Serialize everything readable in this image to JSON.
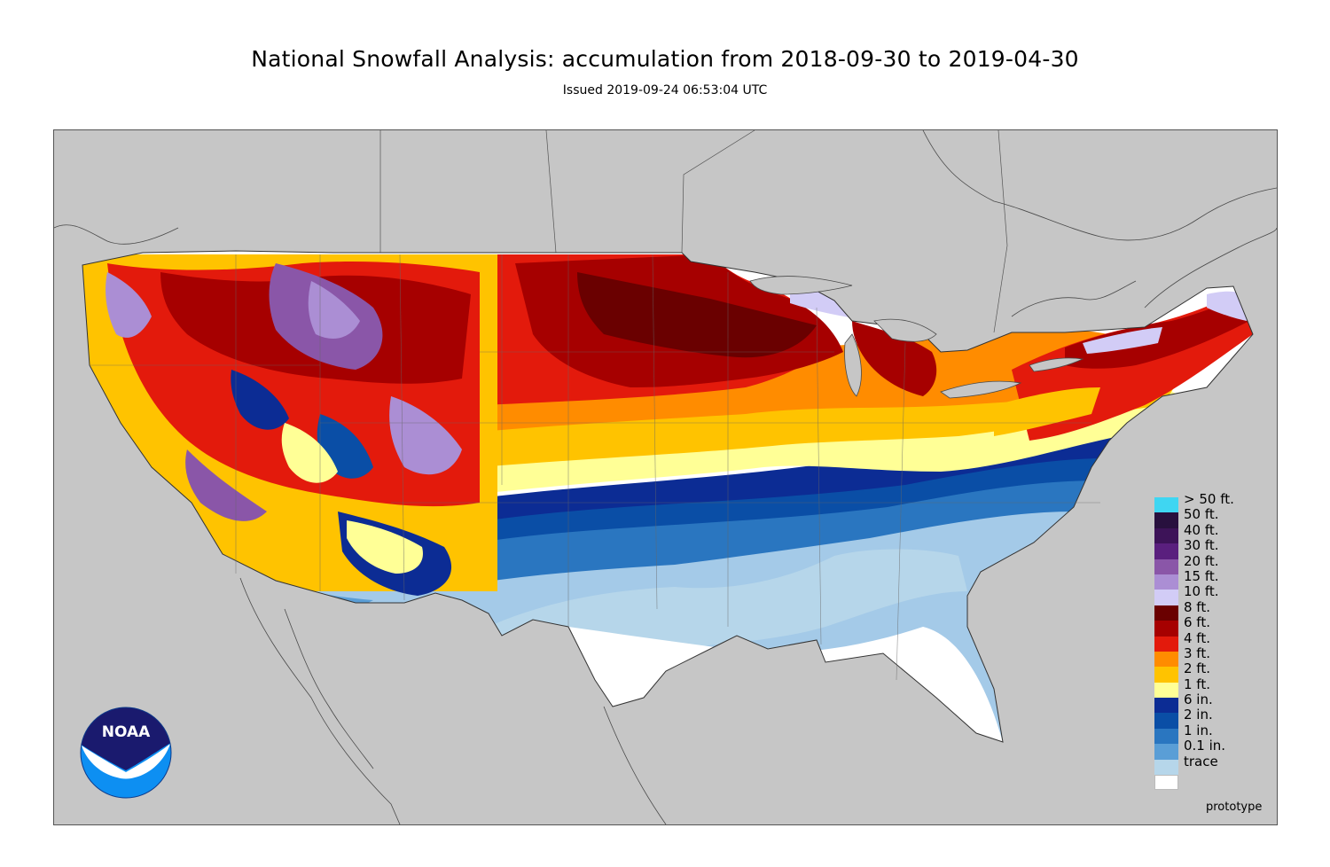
{
  "title": "National Snowfall Analysis: accumulation from 2018-09-30 to 2019-04-30",
  "subtitle": "Issued 2019-09-24 06:53:04 UTC",
  "map": {
    "background_color": "#c6c6c6",
    "land_color": "#ffffff",
    "border_color": "#333333"
  },
  "legend": {
    "items": [
      {
        "label": "> 50 ft.",
        "color": "#3fd6f2"
      },
      {
        "label": "50 ft.",
        "color": "#28103e"
      },
      {
        "label": "40 ft.",
        "color": "#3d1358"
      },
      {
        "label": "30 ft.",
        "color": "#5a1f7e"
      },
      {
        "label": "20 ft.",
        "color": "#8a56a8"
      },
      {
        "label": "15 ft.",
        "color": "#ab8ed4"
      },
      {
        "label": "10 ft.",
        "color": "#d2ccf6"
      },
      {
        "label": "8 ft.",
        "color": "#6a0000"
      },
      {
        "label": "6 ft.",
        "color": "#a60000"
      },
      {
        "label": "4 ft.",
        "color": "#e31a0c"
      },
      {
        "label": "3 ft.",
        "color": "#ff8c00"
      },
      {
        "label": "2 ft.",
        "color": "#ffc300"
      },
      {
        "label": "1 ft.",
        "color": "#ffff96"
      },
      {
        "label": "6 in.",
        "color": "#0c2c94"
      },
      {
        "label": "2 in.",
        "color": "#0a4ea6"
      },
      {
        "label": "1 in.",
        "color": "#2a76c0"
      },
      {
        "label": "0.1 in.",
        "color": "#5a9ed6"
      },
      {
        "label": "trace",
        "color": "#b6d6ea"
      },
      {
        "label": "",
        "color": "#ffffff"
      }
    ]
  },
  "credit": "prototype",
  "logo": {
    "text": "NOAA",
    "icon": "noaa-logo-icon",
    "colors": {
      "top": "#1a1a6e",
      "bottom": "#0d8ff2"
    }
  }
}
